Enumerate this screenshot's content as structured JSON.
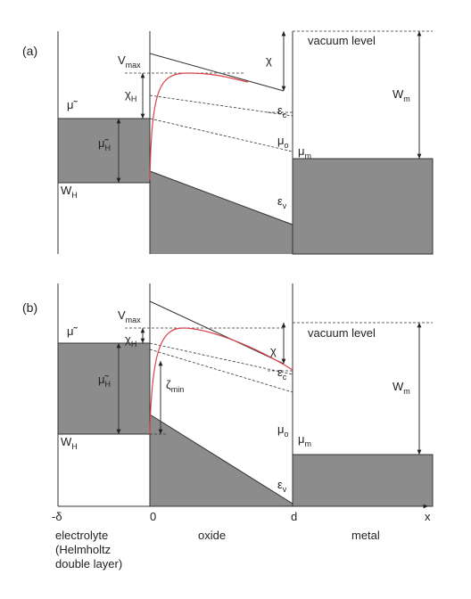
{
  "panels": [
    {
      "label": "(a)",
      "vacuum_level": "vacuum level",
      "v_max": {
        "base": "V",
        "sub": "max"
      },
      "chi": "χ",
      "chi_h": {
        "base": "χ",
        "sub": "H"
      },
      "mu_tilde": "μ̃",
      "mu_tilde_h": {
        "base": "μ̃",
        "sub": "H"
      },
      "eps_c": {
        "base": "ε",
        "sub": "c"
      },
      "eps_v": {
        "base": "ε",
        "sub": "v"
      },
      "mu_o": {
        "base": "μ",
        "sub": "o"
      },
      "mu_m": {
        "base": "μ",
        "sub": "m"
      },
      "w_m": {
        "base": "W",
        "sub": "m"
      },
      "w_h": {
        "base": "W",
        "sub": "H"
      }
    },
    {
      "label": "(b)",
      "vacuum_level": "vacuum level",
      "v_max": {
        "base": "V",
        "sub": "max"
      },
      "chi": "χ",
      "chi_h": {
        "base": "χ",
        "sub": "H"
      },
      "mu_tilde": "μ̃",
      "mu_tilde_h": {
        "base": "μ̃",
        "sub": "H"
      },
      "zeta_min": {
        "base": "ζ",
        "sub": "min"
      },
      "eps_c": {
        "base": "ε",
        "sub": "c"
      },
      "eps_v": {
        "base": "ε",
        "sub": "v"
      },
      "mu_o": {
        "base": "μ",
        "sub": "o"
      },
      "mu_m": {
        "base": "μ",
        "sub": "m"
      },
      "w_m": {
        "base": "W",
        "sub": "m"
      },
      "w_h": {
        "base": "W",
        "sub": "H"
      }
    }
  ],
  "axis": {
    "ticks": [
      "-δ",
      "0",
      "d"
    ],
    "label": "x"
  },
  "regions": {
    "electrolyte": [
      "electrolyte",
      "(Helmholtz",
      "double layer)"
    ],
    "oxide": "oxide",
    "metal": "metal"
  }
}
